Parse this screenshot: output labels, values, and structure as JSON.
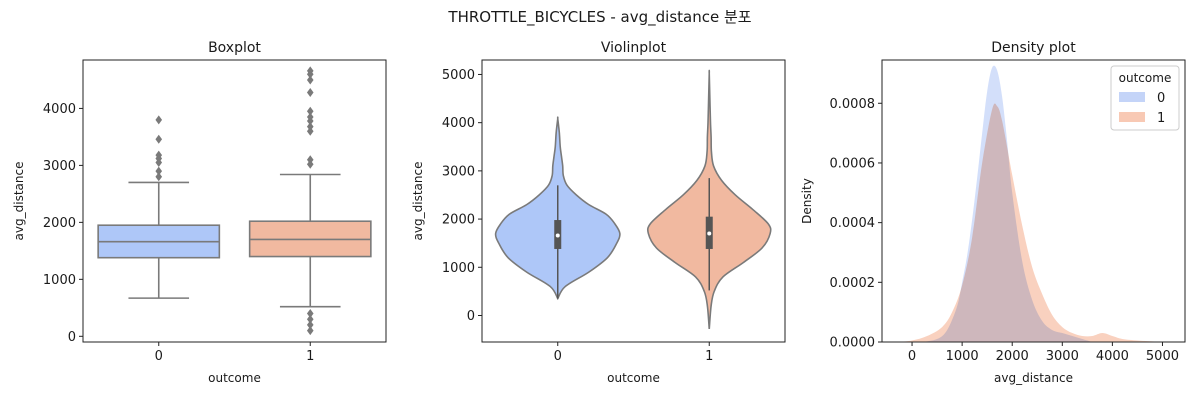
{
  "figure": {
    "suptitle": "THROTTLE_BICYCLES - avg_distance 분포"
  },
  "colors": {
    "c0": "#aec7f8",
    "c1": "#f1b9a0",
    "kde0": "#c4d4f8",
    "kde1": "#f8c9b4",
    "line": "#7a7a7a",
    "overlap": "#cfc9e2"
  },
  "chart_data": [
    {
      "type": "box",
      "title": "Boxplot",
      "xlabel": "outcome",
      "ylabel": "avg_distance",
      "categories": [
        "0",
        "1"
      ],
      "ylim": [
        -100,
        4850
      ],
      "yticks": [
        0,
        1000,
        2000,
        3000,
        4000
      ],
      "boxes": [
        {
          "category": "0",
          "whisker_low": 670,
          "q1": 1380,
          "median": 1660,
          "q3": 1950,
          "whisker_high": 2700,
          "outliers": [
            2800,
            2900,
            3050,
            3120,
            3180,
            3460,
            3800
          ]
        },
        {
          "category": "1",
          "whisker_low": 520,
          "q1": 1400,
          "median": 1700,
          "q3": 2020,
          "whisker_high": 2840,
          "outliers": [
            100,
            200,
            300,
            400,
            3020,
            3100,
            3600,
            3680,
            3780,
            3850,
            3950,
            4280,
            4500,
            4600,
            4660
          ]
        }
      ]
    },
    {
      "type": "violin",
      "title": "Violinplot",
      "xlabel": "outcome",
      "ylabel": "avg_distance",
      "categories": [
        "0",
        "1"
      ],
      "ylim": [
        -550,
        5300
      ],
      "yticks": [
        0,
        1000,
        2000,
        3000,
        4000,
        5000
      ],
      "violins": [
        {
          "category": "0",
          "min": 350,
          "q1": 1380,
          "median": 1660,
          "q3": 1980,
          "max": 4080,
          "half_width": [
            [
              350,
              0.0
            ],
            [
              600,
              0.12
            ],
            [
              900,
              0.5
            ],
            [
              1200,
              0.8
            ],
            [
              1500,
              0.95
            ],
            [
              1700,
              1.0
            ],
            [
              1900,
              0.92
            ],
            [
              2100,
              0.78
            ],
            [
              2300,
              0.5
            ],
            [
              2500,
              0.3
            ],
            [
              2700,
              0.15
            ],
            [
              2900,
              0.09
            ],
            [
              3100,
              0.08
            ],
            [
              3300,
              0.06
            ],
            [
              3500,
              0.04
            ],
            [
              3800,
              0.025
            ],
            [
              4080,
              0.0
            ]
          ]
        },
        {
          "category": "1",
          "min": -280,
          "q1": 1380,
          "median": 1700,
          "q3": 2050,
          "max": 5020,
          "half_width": [
            [
              -280,
              0.0
            ],
            [
              200,
              0.03
            ],
            [
              500,
              0.08
            ],
            [
              800,
              0.22
            ],
            [
              1100,
              0.55
            ],
            [
              1400,
              0.85
            ],
            [
              1700,
              0.98
            ],
            [
              1900,
              0.95
            ],
            [
              2200,
              0.7
            ],
            [
              2500,
              0.42
            ],
            [
              2800,
              0.2
            ],
            [
              3100,
              0.07
            ],
            [
              3400,
              0.035
            ],
            [
              3700,
              0.03
            ],
            [
              4000,
              0.02
            ],
            [
              4500,
              0.01
            ],
            [
              5020,
              0.0
            ]
          ]
        }
      ]
    },
    {
      "type": "area",
      "title": "Density plot",
      "xlabel": "avg_distance",
      "ylabel": "Density",
      "xlim": [
        -600,
        5450
      ],
      "ylim": [
        0,
        0.000945
      ],
      "xticks": [
        0,
        1000,
        2000,
        3000,
        4000,
        5000
      ],
      "yticks": [
        0.0,
        0.0002,
        0.0004,
        0.0006,
        0.0008
      ],
      "ytick_labels": [
        "0.0000",
        "0.0002",
        "0.0004",
        "0.0006",
        "0.0008"
      ],
      "legend": {
        "title": "outcome",
        "placement": "top-right"
      },
      "series": [
        {
          "name": "0",
          "x": [
            200,
            500,
            700,
            900,
            1000,
            1100,
            1200,
            1300,
            1400,
            1500,
            1600,
            1700,
            1800,
            1900,
            2000,
            2200,
            2400,
            2600,
            2800,
            3000,
            3200,
            3400,
            3600
          ],
          "y": [
            0,
            1e-05,
            4e-05,
            0.00012,
            0.0002,
            0.00029,
            0.00041,
            0.00055,
            0.0007,
            0.00084,
            0.00092,
            0.00091,
            0.00082,
            0.00067,
            0.0005,
            0.00027,
            0.00014,
            7e-05,
            4e-05,
            3e-05,
            2e-05,
            1e-05,
            0
          ]
        },
        {
          "name": "1",
          "x": [
            -300,
            0,
            300,
            600,
            800,
            1000,
            1200,
            1400,
            1600,
            1700,
            1800,
            2000,
            2200,
            2400,
            2600,
            2800,
            3000,
            3200,
            3400,
            3600,
            3800,
            4000,
            4200,
            4500,
            4800,
            5100
          ],
          "y": [
            0,
            5e-06,
            2e-05,
            5e-05,
            0.0001,
            0.00019,
            0.00035,
            0.0006,
            0.00078,
            0.00079,
            0.00074,
            0.00056,
            0.00039,
            0.00025,
            0.00016,
            9e-05,
            5e-05,
            3e-05,
            2e-05,
            2e-05,
            3e-05,
            2e-05,
            1e-05,
            5e-06,
            2e-06,
            0
          ]
        }
      ]
    }
  ]
}
